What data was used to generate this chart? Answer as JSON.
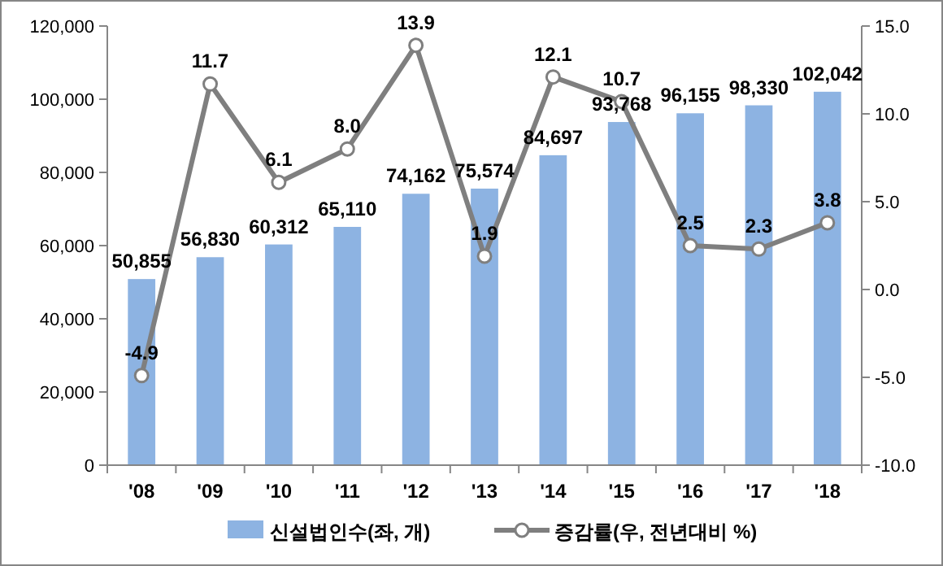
{
  "chart_data": {
    "type": "bar",
    "categories": [
      "'08",
      "'09",
      "'10",
      "'11",
      "'12",
      "'13",
      "'14",
      "'15",
      "'16",
      "'17",
      "'18"
    ],
    "series": [
      {
        "name": "신설법인수(좌, 개)",
        "color": "#8db3e2",
        "values": [
          50855,
          56830,
          60312,
          65110,
          74162,
          75574,
          84697,
          93768,
          96155,
          98330,
          102042
        ],
        "value_labels": [
          "50,855",
          "56,830",
          "60,312",
          "65,110",
          "74,162",
          "75,574",
          "84,697",
          "93,768",
          "96,155",
          "98,330",
          "102,042"
        ]
      },
      {
        "name": "증감률(우, 전년대비 %)",
        "type": "line",
        "axis": "y2",
        "color": "#7f7f7f",
        "marker": "circle",
        "values": [
          -4.9,
          11.7,
          6.1,
          8.0,
          13.9,
          1.9,
          12.1,
          10.7,
          2.5,
          2.3,
          3.8
        ],
        "value_labels": [
          "-4.9",
          "11.7",
          "6.1",
          "8.0",
          "13.9",
          "1.9",
          "12.1",
          "10.7",
          "2.5",
          "2.3",
          "3.8"
        ]
      }
    ],
    "ylim": [
      0,
      120000
    ],
    "yticks": [
      {
        "value": 0,
        "label": "0"
      },
      {
        "value": 20000,
        "label": "20,000"
      },
      {
        "value": 40000,
        "label": "40,000"
      },
      {
        "value": 60000,
        "label": "60,000"
      },
      {
        "value": 80000,
        "label": "80,000"
      },
      {
        "value": 100000,
        "label": "100,000"
      },
      {
        "value": 120000,
        "label": "120,000"
      }
    ],
    "y2lim": [
      -10,
      15
    ],
    "y2ticks": [
      {
        "value": -10,
        "label": "-10.0"
      },
      {
        "value": -5,
        "label": "-5.0"
      },
      {
        "value": 0,
        "label": "0.0"
      },
      {
        "value": 5,
        "label": "5.0"
      },
      {
        "value": 10,
        "label": "10.0"
      },
      {
        "value": 15,
        "label": "15.0"
      }
    ],
    "grid": false,
    "legend": "bottom"
  }
}
